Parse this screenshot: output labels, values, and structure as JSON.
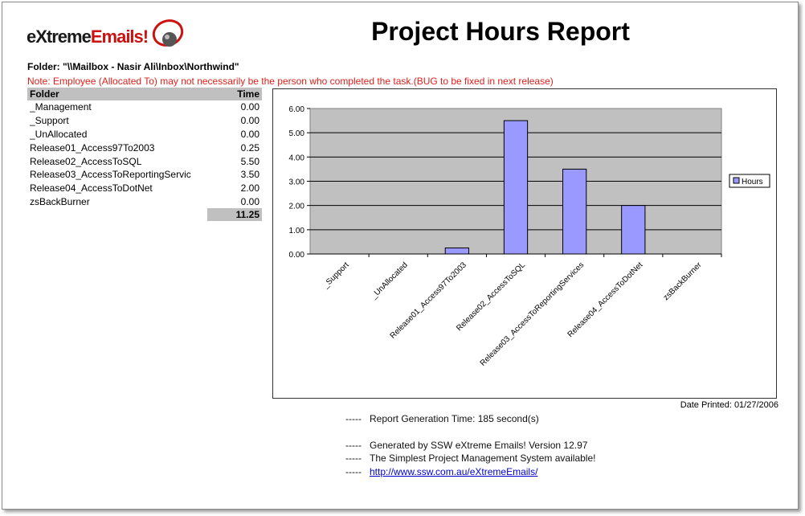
{
  "logo": {
    "prefix": "e",
    "brand_black": "Xtreme",
    "brand_red": "Emails!"
  },
  "report_title": "Project Hours Report",
  "folder_path": "Folder: \"\\\\Mailbox - Nasir Ali\\Inbox\\Northwind\"",
  "note": "Note: Employee (Allocated To) may not necessarily be the person who completed the task.(BUG to be fixed in next release)",
  "table": {
    "headers": {
      "folder": "Folder",
      "time": "Time"
    },
    "rows": [
      {
        "folder": "_Management",
        "time": "0.00"
      },
      {
        "folder": "_Support",
        "time": "0.00"
      },
      {
        "folder": "_UnAllocated",
        "time": "0.00"
      },
      {
        "folder": "Release01_Access97To2003",
        "time": "0.25"
      },
      {
        "folder": "Release02_AccessToSQL",
        "time": "5.50"
      },
      {
        "folder": "Release03_AccessToReportingServic",
        "time": "3.50"
      },
      {
        "folder": "Release04_AccessToDotNet",
        "time": "2.00"
      },
      {
        "folder": "zsBackBurner",
        "time": "0.00"
      }
    ],
    "total": "11.25"
  },
  "chart_data": {
    "type": "bar",
    "categories": [
      "_Support",
      "_UnAllocated",
      "Release01_Access97To2003",
      "Release02_AccessToSQL",
      "Release03_AccessToReportingServices",
      "Release04_AccessToDotNet",
      "zsBackBurner"
    ],
    "series": [
      {
        "name": "Hours",
        "values": [
          0,
          0,
          0.25,
          5.5,
          3.5,
          2.0,
          0
        ]
      }
    ],
    "yticks": [
      "0.00",
      "1.00",
      "2.00",
      "3.00",
      "4.00",
      "5.00",
      "6.00"
    ],
    "ylim": [
      0,
      6
    ],
    "grid": true,
    "legend": "right",
    "colors": {
      "bar": "#9999ff",
      "plot_bg": "#c0c0c0"
    }
  },
  "date_printed": "Date Printed: 01/27/2006",
  "footer": {
    "dash": "-----",
    "generation_time": "Report Generation Time: 185 second(s)",
    "generated_by": "Generated by SSW eXtreme Emails! Version 12.97",
    "tagline": "The Simplest Project Management System available!",
    "url": "http://www.ssw.com.au/eXtremeEmails/"
  }
}
